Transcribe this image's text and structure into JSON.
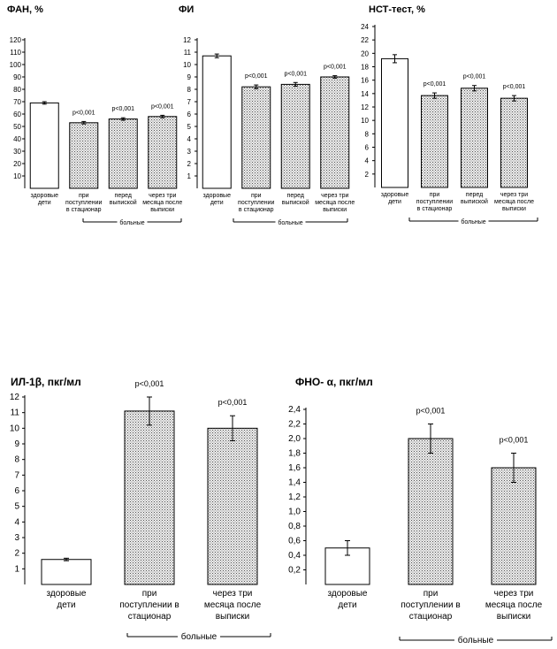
{
  "chart_data": [
    {
      "type": "bar",
      "title": "ФАН, %",
      "categories": [
        [
          "здоровые",
          "дети"
        ],
        [
          "при",
          "поступлении",
          "в стационар"
        ],
        [
          "перед",
          "выпиской"
        ],
        [
          "через три",
          "месяца после",
          "выписки"
        ]
      ],
      "values": [
        69,
        53,
        56,
        58
      ],
      "errors": [
        1,
        1,
        1,
        1
      ],
      "significance": [
        "",
        "p<0,001",
        "p<0,001",
        "p<0,001"
      ],
      "group_label": "больные",
      "ylim": [
        0,
        120
      ],
      "yticks": [
        10,
        20,
        30,
        40,
        50,
        60,
        70,
        80,
        90,
        100,
        110,
        120
      ],
      "bar_fills": [
        "white",
        "hatch",
        "hatch",
        "hatch"
      ]
    },
    {
      "type": "bar",
      "title": "ФИ",
      "categories": [
        [
          "здоровые",
          "дети"
        ],
        [
          "при",
          "поступлении",
          "в стационар"
        ],
        [
          "перед",
          "выпиской"
        ],
        [
          "через три",
          "месяца после",
          "выписки"
        ]
      ],
      "values": [
        10.7,
        8.2,
        8.4,
        9.0
      ],
      "errors": [
        0.15,
        0.15,
        0.15,
        0.1
      ],
      "significance": [
        "",
        "p<0,001",
        "p<0,001",
        "p<0,001"
      ],
      "group_label": "больные",
      "ylim": [
        0,
        12
      ],
      "yticks": [
        1,
        2,
        3,
        4,
        5,
        6,
        7,
        8,
        9,
        10,
        11,
        12
      ],
      "bar_fills": [
        "white",
        "hatch",
        "hatch",
        "hatch"
      ]
    },
    {
      "type": "bar",
      "title": "НСТ-тест, %",
      "categories": [
        [
          "здоровые",
          "дети"
        ],
        [
          "при",
          "поступлении",
          "в стационар"
        ],
        [
          "перед",
          "выпиской"
        ],
        [
          "через три",
          "месяца после",
          "выписки"
        ]
      ],
      "values": [
        19.2,
        13.7,
        14.8,
        13.3
      ],
      "errors": [
        0.6,
        0.4,
        0.4,
        0.4
      ],
      "significance": [
        "",
        "p<0,001",
        "p<0,001",
        "p<0,001"
      ],
      "group_label": "больные",
      "ylim": [
        0,
        24
      ],
      "yticks": [
        2,
        4,
        6,
        8,
        10,
        12,
        14,
        16,
        18,
        20,
        22,
        24
      ],
      "bar_fills": [
        "white",
        "hatch",
        "hatch",
        "hatch"
      ]
    },
    {
      "type": "bar",
      "title": "ИЛ-1β, пкг/мл",
      "categories": [
        [
          "здоровые",
          "дети"
        ],
        [
          "при",
          "поступлении в",
          "стационар"
        ],
        [
          "через три",
          "месяца после",
          "выписки"
        ]
      ],
      "values": [
        1.6,
        11.1,
        10.0
      ],
      "errors": [
        0.08,
        0.9,
        0.8
      ],
      "significance": [
        "",
        "p<0,001",
        "p<0,001"
      ],
      "group_label": "больные",
      "ylim": [
        0,
        12
      ],
      "yticks": [
        1,
        2,
        3,
        4,
        5,
        6,
        7,
        8,
        9,
        10,
        11,
        12
      ],
      "bar_fills": [
        "white",
        "hatch",
        "hatch"
      ]
    },
    {
      "type": "bar",
      "title": "ФНО- α, пкг/мл",
      "categories": [
        [
          "здоровые",
          "дети"
        ],
        [
          "при",
          "поступлении в",
          "стационар"
        ],
        [
          "через три",
          "месяца после",
          "выписки"
        ]
      ],
      "values": [
        0.5,
        2.0,
        1.6
      ],
      "errors": [
        0.1,
        0.2,
        0.2
      ],
      "significance": [
        "",
        "p<0,001",
        "p<0,001"
      ],
      "group_label": "больные",
      "ylim": [
        0,
        2.4
      ],
      "yticks": [
        0.2,
        0.4,
        0.6,
        0.8,
        1.0,
        1.2,
        1.4,
        1.6,
        1.8,
        2.0,
        2.2,
        2.4
      ],
      "tick_labels": [
        "0,2",
        "0,4",
        "0,6",
        "0,8",
        "1,0",
        "1,2",
        "1,4",
        "1,6",
        "1,8",
        "2,0",
        "2,2",
        "2,4"
      ],
      "bar_fills": [
        "white",
        "hatch",
        "hatch"
      ]
    }
  ]
}
